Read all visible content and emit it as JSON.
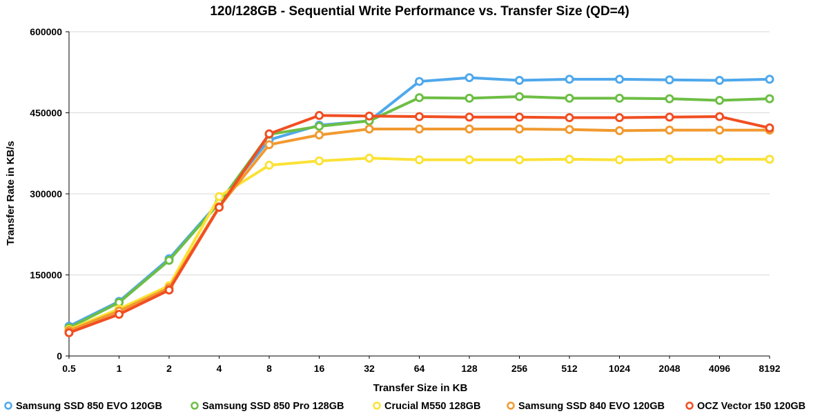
{
  "chart_data": {
    "type": "line",
    "title": "120/128GB - Sequential Write Performance vs. Transfer Size (QD=4)",
    "xlabel": "Transfer Size in KB",
    "ylabel": "Transfer Rate in KB/s",
    "categories": [
      "0.5",
      "1",
      "2",
      "4",
      "8",
      "16",
      "32",
      "64",
      "128",
      "256",
      "512",
      "1024",
      "2048",
      "4096",
      "8192"
    ],
    "ylim": [
      0,
      600000
    ],
    "yticks": [
      0,
      150000,
      300000,
      450000,
      600000
    ],
    "ytick_labels": [
      "0",
      "150000",
      "300000",
      "450000",
      "600000"
    ],
    "grid": true,
    "legend_position": "bottom",
    "series": [
      {
        "name": "Samsung SSD 850 EVO 120GB",
        "color": "#4FA8EC",
        "values": [
          55000,
          101000,
          180000,
          285000,
          400000,
          427000,
          435000,
          508000,
          515000,
          510000,
          512000,
          512000,
          511000,
          510000,
          512000
        ]
      },
      {
        "name": "Samsung SSD 850 Pro 128GB",
        "color": "#6DBE45",
        "values": [
          52000,
          99000,
          177000,
          283000,
          410000,
          425000,
          435000,
          478000,
          477000,
          480000,
          477000,
          477000,
          476000,
          473000,
          476000
        ]
      },
      {
        "name": "Crucial M550 128GB",
        "color": "#FBE236",
        "values": [
          49000,
          87000,
          130000,
          295000,
          353000,
          361000,
          366000,
          363000,
          363000,
          363000,
          364000,
          363000,
          364000,
          364000,
          364000
        ]
      },
      {
        "name": "Samsung SSD 840 EVO 120GB",
        "color": "#F1992F",
        "values": [
          47000,
          83000,
          126000,
          276000,
          391000,
          409000,
          420000,
          420000,
          420000,
          420000,
          419000,
          417000,
          418000,
          418000,
          418000
        ]
      },
      {
        "name": "OCZ Vector 150 120GB",
        "color": "#F14E22",
        "values": [
          43000,
          77000,
          122000,
          275000,
          411000,
          445000,
          444000,
          443000,
          442000,
          442000,
          441000,
          441000,
          442000,
          443000,
          422000
        ]
      }
    ]
  }
}
